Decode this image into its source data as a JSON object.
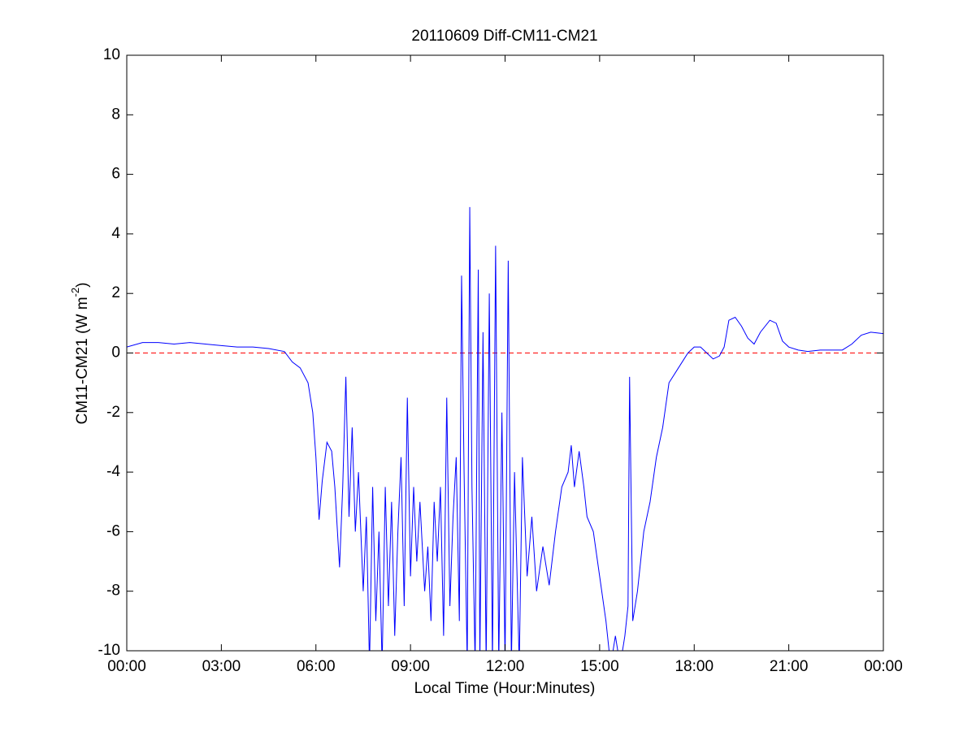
{
  "chart_data": {
    "type": "line",
    "title": "20110609 Diff-CM11-CM21",
    "xlabel": "Local Time (Hour:Minutes)",
    "ylabel": {
      "text": "CM11-CM21 (W m",
      "superscript": "-2",
      "suffix": ")"
    },
    "xlim": [
      0,
      24
    ],
    "ylim": [
      -10,
      10
    ],
    "xticks": [
      {
        "value": 0,
        "label": "00:00"
      },
      {
        "value": 3,
        "label": "03:00"
      },
      {
        "value": 6,
        "label": "06:00"
      },
      {
        "value": 9,
        "label": "09:00"
      },
      {
        "value": 12,
        "label": "12:00"
      },
      {
        "value": 15,
        "label": "15:00"
      },
      {
        "value": 18,
        "label": "18:00"
      },
      {
        "value": 21,
        "label": "21:00"
      },
      {
        "value": 24,
        "label": "00:00"
      }
    ],
    "yticks": [
      -10,
      -8,
      -6,
      -4,
      -2,
      0,
      2,
      4,
      6,
      8,
      10
    ],
    "reference_line": {
      "value": 0,
      "color": "#ff0000",
      "style": "dashed"
    },
    "x": [
      0,
      0.5,
      1,
      1.5,
      2,
      2.5,
      3,
      3.5,
      4,
      4.5,
      5,
      5.25,
      5.5,
      5.75,
      5.9,
      6.0,
      6.1,
      6.2,
      6.35,
      6.5,
      6.6,
      6.75,
      6.85,
      6.95,
      7.05,
      7.15,
      7.25,
      7.35,
      7.5,
      7.6,
      7.7,
      7.8,
      7.9,
      8.0,
      8.1,
      8.2,
      8.3,
      8.4,
      8.5,
      8.6,
      8.7,
      8.8,
      8.9,
      9.0,
      9.1,
      9.2,
      9.3,
      9.45,
      9.55,
      9.65,
      9.75,
      9.85,
      9.95,
      10.05,
      10.15,
      10.25,
      10.35,
      10.45,
      10.55,
      10.62,
      10.7,
      10.8,
      10.88,
      10.95,
      11.05,
      11.15,
      11.2,
      11.3,
      11.4,
      11.5,
      11.6,
      11.7,
      11.8,
      11.9,
      12.0,
      12.1,
      12.2,
      12.3,
      12.45,
      12.55,
      12.7,
      12.85,
      13.0,
      13.2,
      13.4,
      13.6,
      13.8,
      14.0,
      14.1,
      14.2,
      14.35,
      14.5,
      14.6,
      14.8,
      15.0,
      15.2,
      15.35,
      15.5,
      15.65,
      15.8,
      15.9,
      15.95,
      16.05,
      16.2,
      16.4,
      16.6,
      16.8,
      17.0,
      17.2,
      17.5,
      17.8,
      18.0,
      18.2,
      18.4,
      18.6,
      18.8,
      18.95,
      19.1,
      19.3,
      19.5,
      19.7,
      19.9,
      20.1,
      20.4,
      20.6,
      20.8,
      21.0,
      21.3,
      21.6,
      22.0,
      22.4,
      22.7,
      23.0,
      23.3,
      23.6,
      24.0
    ],
    "series": [
      {
        "color": "#0000ff",
        "values": [
          0.2,
          0.35,
          0.35,
          0.3,
          0.35,
          0.3,
          0.25,
          0.2,
          0.2,
          0.15,
          0.05,
          -0.3,
          -0.5,
          -1.0,
          -2,
          -3.5,
          -5.6,
          -4.3,
          -3.0,
          -3.3,
          -4.5,
          -7.2,
          -4.5,
          -0.8,
          -5.5,
          -2.5,
          -6.0,
          -4.0,
          -8.0,
          -5.5,
          -10.5,
          -4.5,
          -9.0,
          -6.0,
          -10.5,
          -4.5,
          -8.5,
          -5.0,
          -9.5,
          -6.0,
          -3.5,
          -8.5,
          -1.5,
          -7.5,
          -4.5,
          -7.0,
          -5.0,
          -8.0,
          -6.5,
          -9.0,
          -5.0,
          -7.0,
          -4.5,
          -9.5,
          -1.5,
          -8.5,
          -5.5,
          -3.5,
          -9.0,
          2.6,
          -4.0,
          -10.5,
          4.9,
          -4.5,
          -10.5,
          2.8,
          -10.5,
          0.7,
          -10.5,
          2.0,
          -10.5,
          3.6,
          -10.5,
          -2.0,
          -10.5,
          3.1,
          -10.5,
          -4.0,
          -10.5,
          -3.5,
          -7.5,
          -5.5,
          -8.0,
          -6.5,
          -7.8,
          -6.0,
          -4.5,
          -4.0,
          -3.1,
          -4.5,
          -3.3,
          -4.5,
          -5.5,
          -6.0,
          -7.5,
          -9.0,
          -10.5,
          -9.5,
          -10.5,
          -9.5,
          -8.5,
          -0.8,
          -9.0,
          -8.0,
          -6.0,
          -5.0,
          -3.5,
          -2.5,
          -1.0,
          -0.5,
          0.0,
          0.2,
          0.2,
          0.0,
          -0.2,
          -0.1,
          0.2,
          1.1,
          1.2,
          0.9,
          0.5,
          0.3,
          0.7,
          1.1,
          1.0,
          0.4,
          0.2,
          0.1,
          0.05,
          0.1,
          0.1,
          0.1,
          0.3,
          0.6,
          0.7,
          0.65
        ]
      }
    ]
  }
}
